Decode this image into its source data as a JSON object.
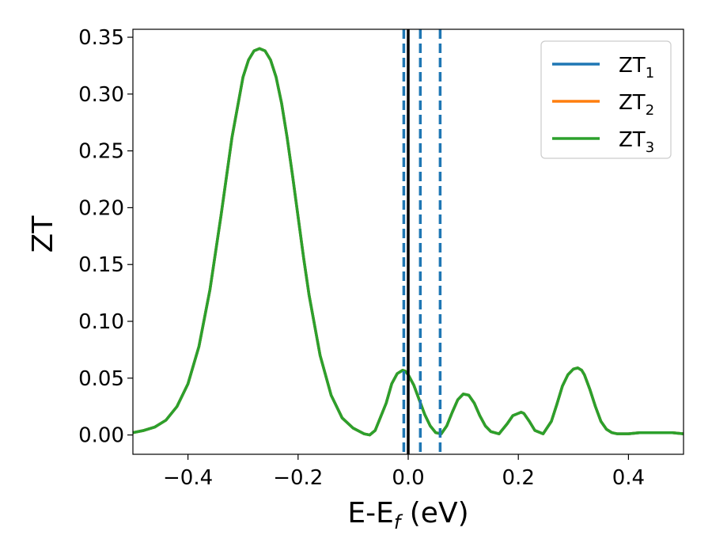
{
  "chart_data": {
    "type": "line",
    "xlabel": "E-E",
    "xlabel_sub": "f",
    "xlabel_unit": " (eV)",
    "ylabel": "ZT",
    "xlim": [
      -0.5,
      0.5
    ],
    "ylim": [
      -0.017,
      0.357
    ],
    "x_ticks": [
      -0.4,
      -0.2,
      0.0,
      0.2,
      0.4
    ],
    "x_tick_labels": [
      "−0.4",
      "−0.2",
      "0.0",
      "0.2",
      "0.4"
    ],
    "y_ticks": [
      0.0,
      0.05,
      0.1,
      0.15,
      0.2,
      0.25,
      0.3,
      0.35
    ],
    "y_tick_labels": [
      "0.00",
      "0.05",
      "0.10",
      "0.15",
      "0.20",
      "0.25",
      "0.30",
      "0.35"
    ],
    "grid": false,
    "legend_position": "top-right",
    "series": [
      {
        "name": "ZT",
        "sub": "1",
        "color": "#1f77b4"
      },
      {
        "name": "ZT",
        "sub": "2",
        "color": "#ff7f0e"
      },
      {
        "name": "ZT",
        "sub": "3",
        "color": "#2ca02c"
      }
    ],
    "x": [
      -0.5,
      -0.48,
      -0.46,
      -0.44,
      -0.42,
      -0.4,
      -0.38,
      -0.36,
      -0.34,
      -0.32,
      -0.3,
      -0.29,
      -0.28,
      -0.27,
      -0.26,
      -0.25,
      -0.24,
      -0.23,
      -0.22,
      -0.21,
      -0.2,
      -0.19,
      -0.18,
      -0.16,
      -0.14,
      -0.12,
      -0.1,
      -0.08,
      -0.07,
      -0.06,
      -0.04,
      -0.03,
      -0.02,
      -0.01,
      -0.005,
      0.0,
      0.01,
      0.02,
      0.03,
      0.04,
      0.05,
      0.06,
      0.07,
      0.08,
      0.09,
      0.1,
      0.11,
      0.12,
      0.13,
      0.14,
      0.15,
      0.165,
      0.18,
      0.19,
      0.2,
      0.205,
      0.21,
      0.22,
      0.23,
      0.245,
      0.26,
      0.27,
      0.28,
      0.29,
      0.3,
      0.308,
      0.315,
      0.32,
      0.33,
      0.34,
      0.35,
      0.36,
      0.37,
      0.38,
      0.39,
      0.4,
      0.42,
      0.44,
      0.46,
      0.48,
      0.5
    ],
    "y": [
      0.002,
      0.004,
      0.007,
      0.013,
      0.025,
      0.045,
      0.078,
      0.128,
      0.193,
      0.262,
      0.315,
      0.33,
      0.338,
      0.34,
      0.338,
      0.33,
      0.315,
      0.292,
      0.262,
      0.228,
      0.192,
      0.156,
      0.123,
      0.07,
      0.035,
      0.015,
      0.006,
      0.001,
      0.0,
      0.004,
      0.028,
      0.045,
      0.054,
      0.057,
      0.056,
      0.053,
      0.044,
      0.031,
      0.018,
      0.008,
      0.002,
      0.001,
      0.008,
      0.02,
      0.031,
      0.036,
      0.035,
      0.028,
      0.017,
      0.008,
      0.003,
      0.001,
      0.01,
      0.017,
      0.019,
      0.02,
      0.019,
      0.012,
      0.004,
      0.001,
      0.012,
      0.027,
      0.043,
      0.053,
      0.058,
      0.059,
      0.057,
      0.053,
      0.04,
      0.025,
      0.012,
      0.005,
      0.002,
      0.001,
      0.001,
      0.001,
      0.002,
      0.002,
      0.002,
      0.002,
      0.001
    ],
    "vertical_lines": [
      {
        "x": 0.0,
        "style": "solid",
        "color": "#000000"
      },
      {
        "x": -0.008,
        "style": "dashed",
        "color": "#1f77b4"
      },
      {
        "x": 0.022,
        "style": "dashed",
        "color": "#1f77b4"
      },
      {
        "x": 0.058,
        "style": "dashed",
        "color": "#1f77b4"
      }
    ]
  }
}
